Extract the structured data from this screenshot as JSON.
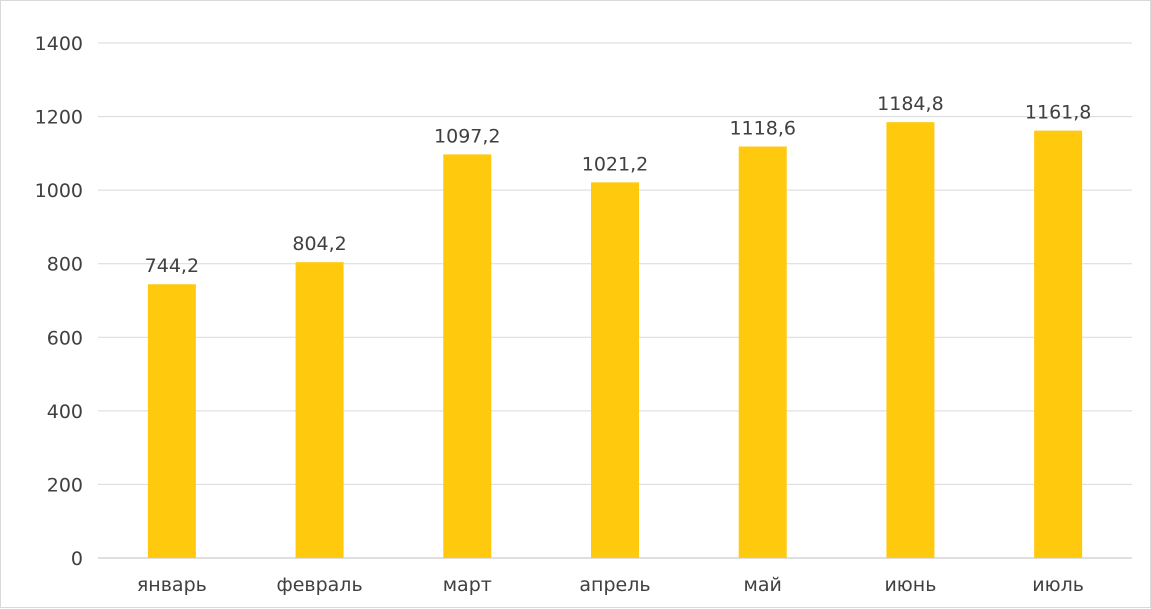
{
  "chart_data": {
    "type": "bar",
    "categories": [
      "январь",
      "февраль",
      "март",
      "апрель",
      "май",
      "июнь",
      "июль"
    ],
    "values": [
      744.2,
      804.2,
      1097.2,
      1021.2,
      1118.6,
      1184.8,
      1161.8
    ],
    "value_labels": [
      "744,2",
      "804,2",
      "1097,2",
      "1021,2",
      "1118,6",
      "1184,8",
      "1161,8"
    ],
    "title": "",
    "xlabel": "",
    "ylabel": "",
    "ylim": [
      0,
      1400
    ],
    "yticks": [
      0,
      200,
      400,
      600,
      800,
      1000,
      1200,
      1400
    ],
    "grid": true,
    "legend": "none",
    "bar_color": "#FFC90E"
  }
}
